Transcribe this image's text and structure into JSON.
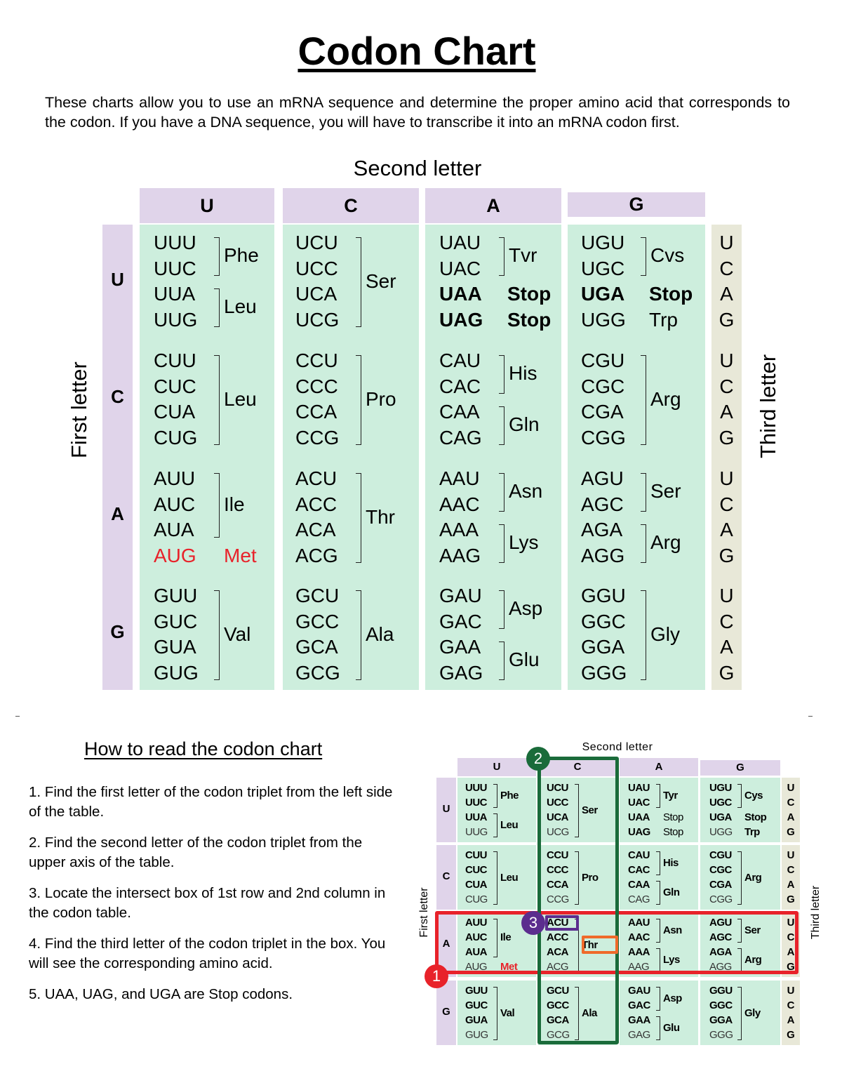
{
  "title": "Codon Chart",
  "intro": "These charts allow you to use an mRNA sequence and determine the proper amino acid that corresponds to the codon. If you have a DNA sequence, you will have to transcribe it into an mRNA codon first.",
  "axis_labels": {
    "second": "Second letter",
    "first": "First letter",
    "third": "Third letter"
  },
  "second_letters": [
    "U",
    "C",
    "A",
    "G"
  ],
  "first_letters": [
    "U",
    "C",
    "A",
    "G"
  ],
  "third_letters": [
    "U",
    "C",
    "A",
    "G"
  ],
  "colors": {
    "header_bg": "#e0d4ea",
    "cell_bg": "#cdeedd",
    "third_bg": "#e8e8d8",
    "start_codon": "#e8222a",
    "marker_1": "#e8222a",
    "marker_2": "#1a6b3a",
    "marker_3": "#5b2d8e",
    "thr_highlight": "#ef6a2a"
  },
  "chart": {
    "U": {
      "U": {
        "codons": [
          "UUU",
          "UUC",
          "UUA",
          "UUG"
        ],
        "groups": [
          {
            "aa": "Phe",
            "span": [
              0,
              1
            ]
          },
          {
            "aa": "Leu",
            "span": [
              2,
              3
            ]
          }
        ]
      },
      "C": {
        "codons": [
          "UCU",
          "UCC",
          "UCA",
          "UCG"
        ],
        "groups": [
          {
            "aa": "Ser",
            "span": [
              0,
              3
            ]
          }
        ]
      },
      "A": {
        "codons": [
          "UAU",
          "UAC",
          "UAA",
          "UAG"
        ],
        "groups": [
          {
            "aa": "Tvr",
            "span": [
              0,
              1
            ]
          },
          {
            "aa": "Stop",
            "span": [
              2,
              2
            ],
            "bold": true
          },
          {
            "aa": "Stop",
            "span": [
              3,
              3
            ],
            "bold": true
          }
        ]
      },
      "G": {
        "codons": [
          "UGU",
          "UGC",
          "UGA",
          "UGG"
        ],
        "groups": [
          {
            "aa": "Cvs",
            "span": [
              0,
              1
            ]
          },
          {
            "aa": "Stop",
            "span": [
              2,
              2
            ],
            "bold": true
          },
          {
            "aa": "Trp",
            "span": [
              3,
              3
            ]
          }
        ]
      }
    },
    "C": {
      "U": {
        "codons": [
          "CUU",
          "CUC",
          "CUA",
          "CUG"
        ],
        "groups": [
          {
            "aa": "Leu",
            "span": [
              0,
              3
            ]
          }
        ]
      },
      "C": {
        "codons": [
          "CCU",
          "CCC",
          "CCA",
          "CCG"
        ],
        "groups": [
          {
            "aa": "Pro",
            "span": [
              0,
              3
            ]
          }
        ]
      },
      "A": {
        "codons": [
          "CAU",
          "CAC",
          "CAA",
          "CAG"
        ],
        "groups": [
          {
            "aa": "His",
            "span": [
              0,
              1
            ]
          },
          {
            "aa": "Gln",
            "span": [
              2,
              3
            ]
          }
        ]
      },
      "G": {
        "codons": [
          "CGU",
          "CGC",
          "CGA",
          "CGG"
        ],
        "groups": [
          {
            "aa": "Arg",
            "span": [
              0,
              3
            ]
          }
        ]
      }
    },
    "A": {
      "U": {
        "codons": [
          "AUU",
          "AUC",
          "AUA",
          "AUG"
        ],
        "groups": [
          {
            "aa": "Ile",
            "span": [
              0,
              2
            ]
          },
          {
            "aa": "Met",
            "span": [
              3,
              3
            ],
            "start": true
          }
        ]
      },
      "C": {
        "codons": [
          "ACU",
          "ACC",
          "ACA",
          "ACG"
        ],
        "groups": [
          {
            "aa": "Thr",
            "span": [
              0,
              3
            ]
          }
        ]
      },
      "A": {
        "codons": [
          "AAU",
          "AAC",
          "AAA",
          "AAG"
        ],
        "groups": [
          {
            "aa": "Asn",
            "span": [
              0,
              1
            ]
          },
          {
            "aa": "Lys",
            "span": [
              2,
              3
            ]
          }
        ]
      },
      "G": {
        "codons": [
          "AGU",
          "AGC",
          "AGA",
          "AGG"
        ],
        "groups": [
          {
            "aa": "Ser",
            "span": [
              0,
              1
            ]
          },
          {
            "aa": "Arg",
            "span": [
              2,
              3
            ]
          }
        ]
      }
    },
    "G": {
      "U": {
        "codons": [
          "GUU",
          "GUC",
          "GUA",
          "GUG"
        ],
        "groups": [
          {
            "aa": "Val",
            "span": [
              0,
              3
            ]
          }
        ]
      },
      "C": {
        "codons": [
          "GCU",
          "GCC",
          "GCA",
          "GCG"
        ],
        "groups": [
          {
            "aa": "Ala",
            "span": [
              0,
              3
            ]
          }
        ]
      },
      "A": {
        "codons": [
          "GAU",
          "GAC",
          "GAA",
          "GAG"
        ],
        "groups": [
          {
            "aa": "Asp",
            "span": [
              0,
              1
            ]
          },
          {
            "aa": "Glu",
            "span": [
              2,
              3
            ]
          }
        ]
      },
      "G": {
        "codons": [
          "GGU",
          "GGC",
          "GGA",
          "GGG"
        ],
        "groups": [
          {
            "aa": "Gly",
            "span": [
              0,
              3
            ]
          }
        ]
      }
    }
  },
  "small_chart_aa_overrides": {
    "U.A.0": "Tyr",
    "U.G.0": "Cys"
  },
  "howto": {
    "title": "How to read the codon chart",
    "steps": [
      "1. Find the first letter of the codon triplet from the left side of the table.",
      "2. Find the second letter of the codon triplet from the upper axis of the table.",
      "3. Locate the intersect box of 1st row and 2nd column in the codon table.",
      "4. Find the third letter of the codon triplet in the box. You will see the corresponding amino acid.",
      "5. UAA, UAG, and UGA are Stop codons."
    ]
  },
  "markers": [
    "1",
    "2",
    "3"
  ]
}
